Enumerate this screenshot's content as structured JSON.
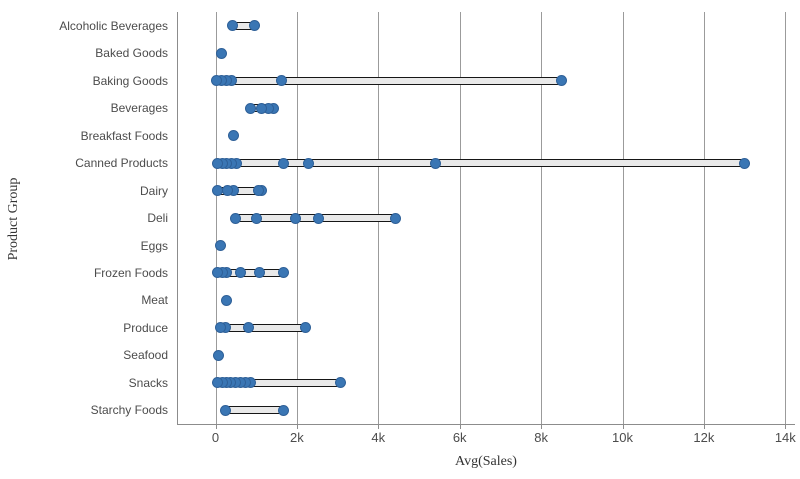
{
  "chart_data": {
    "type": "scatter",
    "variant": "distribution-plot",
    "title": "",
    "xlabel": "Avg(Sales)",
    "ylabel": "Product Group",
    "legend": "none",
    "grid": "vertical-only",
    "xlim": [
      -950,
      14250
    ],
    "x_ticks": [
      {
        "label": "0",
        "value": 0
      },
      {
        "label": "2k",
        "value": 2000
      },
      {
        "label": "4k",
        "value": 4000
      },
      {
        "label": "6k",
        "value": 6000
      },
      {
        "label": "8k",
        "value": 8000
      },
      {
        "label": "10k",
        "value": 10000
      },
      {
        "label": "12k",
        "value": 12000
      },
      {
        "label": "14k",
        "value": 14000
      }
    ],
    "rows": [
      {
        "category": "Alcoholic Beverages",
        "values": [
          410,
          960
        ]
      },
      {
        "category": "Baked Goods",
        "values": [
          150
        ]
      },
      {
        "category": "Baking Goods",
        "values": [
          30,
          150,
          270,
          400,
          1630,
          8490
        ]
      },
      {
        "category": "Beverages",
        "values": [
          870,
          1140,
          1300,
          1420
        ]
      },
      {
        "category": "Breakfast Foods",
        "values": [
          440
        ]
      },
      {
        "category": "Canned Products",
        "values": [
          60,
          170,
          280,
          400,
          520,
          1670,
          2290,
          5410,
          12990
        ]
      },
      {
        "category": "Dairy",
        "values": [
          60,
          300,
          430,
          1050,
          1140
        ]
      },
      {
        "category": "Deli",
        "values": [
          480,
          1010,
          1970,
          2540,
          4430
        ]
      },
      {
        "category": "Eggs",
        "values": [
          110
        ]
      },
      {
        "category": "Frozen Foods",
        "values": [
          40,
          160,
          280,
          620,
          1070,
          1680
        ]
      },
      {
        "category": "Meat",
        "values": [
          280
        ]
      },
      {
        "category": "Produce",
        "values": [
          120,
          250,
          820,
          2220
        ]
      },
      {
        "category": "Seafood",
        "values": [
          80
        ]
      },
      {
        "category": "Snacks",
        "values": [
          60,
          160,
          260,
          370,
          490,
          620,
          740,
          860,
          3080
        ]
      },
      {
        "category": "Starchy Foods",
        "values": [
          250,
          1680
        ]
      }
    ],
    "colors": {
      "point_fill": "#3a76b4",
      "point_border": "#2e6098",
      "range_fill": "#e9e9e9",
      "range_border": "#161616",
      "grid": "#9b9b9b",
      "axis": "#8c8c8c",
      "tick_label": "#4c4c4c",
      "category_label": "#4c4c4c",
      "axis_title": "#333333",
      "background": "#ffffff"
    }
  }
}
